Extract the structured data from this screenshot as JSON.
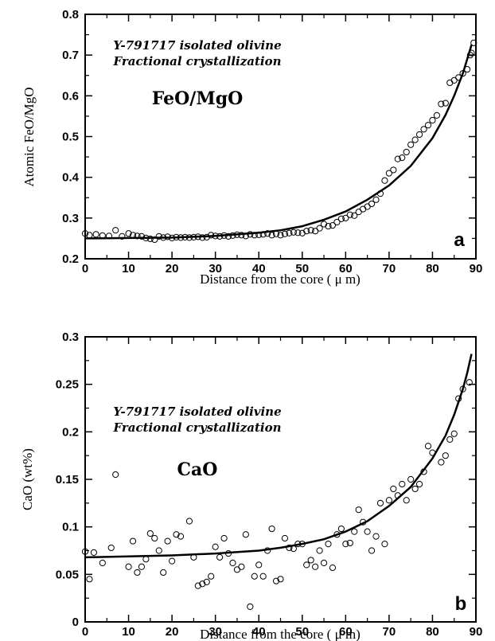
{
  "chart_data": [
    {
      "type": "scatter",
      "panel_label": "a",
      "annotation_line1": "Y-791717 isolated olivine",
      "annotation_line2": "Fractional crystallization",
      "annotation_title": "FeO/MgO",
      "xlabel": "Distance from the core ( μ m)",
      "ylabel": "Atomic FeO/MgO",
      "xlim": [
        0,
        90
      ],
      "ylim": [
        0.2,
        0.8
      ],
      "xticks": [
        "0",
        "10",
        "20",
        "30",
        "40",
        "50",
        "60",
        "70",
        "80",
        "90"
      ],
      "yticks": [
        "0.2",
        "0.3",
        "0.4",
        "0.5",
        "0.6",
        "0.7",
        "0.8"
      ],
      "grid": false,
      "series": [
        {
          "style": "open-circle",
          "points": [
            [
              0,
              0.262
            ],
            [
              1,
              0.258
            ],
            [
              2.5,
              0.26
            ],
            [
              4,
              0.257
            ],
            [
              5.5,
              0.256
            ],
            [
              7,
              0.27
            ],
            [
              8.5,
              0.255
            ],
            [
              10,
              0.262
            ],
            [
              11,
              0.258
            ],
            [
              12,
              0.256
            ],
            [
              13,
              0.255
            ],
            [
              14,
              0.251
            ],
            [
              15,
              0.249
            ],
            [
              16,
              0.247
            ],
            [
              17,
              0.255
            ],
            [
              18,
              0.252
            ],
            [
              19,
              0.254
            ],
            [
              20,
              0.251
            ],
            [
              21,
              0.253
            ],
            [
              22,
              0.252
            ],
            [
              23,
              0.253
            ],
            [
              24,
              0.252
            ],
            [
              25,
              0.253
            ],
            [
              26,
              0.254
            ],
            [
              27,
              0.252
            ],
            [
              28,
              0.253
            ],
            [
              29,
              0.258
            ],
            [
              30,
              0.256
            ],
            [
              31,
              0.255
            ],
            [
              32,
              0.257
            ],
            [
              33,
              0.255
            ],
            [
              34,
              0.257
            ],
            [
              35,
              0.259
            ],
            [
              36,
              0.258
            ],
            [
              37,
              0.256
            ],
            [
              38,
              0.26
            ],
            [
              39,
              0.258
            ],
            [
              40,
              0.259
            ],
            [
              41,
              0.26
            ],
            [
              42,
              0.262
            ],
            [
              43,
              0.258
            ],
            [
              44,
              0.261
            ],
            [
              45,
              0.258
            ],
            [
              46,
              0.261
            ],
            [
              47,
              0.263
            ],
            [
              48,
              0.265
            ],
            [
              49,
              0.264
            ],
            [
              50,
              0.263
            ],
            [
              51,
              0.268
            ],
            [
              52,
              0.27
            ],
            [
              53,
              0.268
            ],
            [
              54,
              0.275
            ],
            [
              55,
              0.285
            ],
            [
              56,
              0.28
            ],
            [
              57,
              0.282
            ],
            [
              58,
              0.29
            ],
            [
              59,
              0.298
            ],
            [
              60,
              0.3
            ],
            [
              61,
              0.308
            ],
            [
              62,
              0.306
            ],
            [
              63,
              0.315
            ],
            [
              64,
              0.322
            ],
            [
              65,
              0.328
            ],
            [
              66,
              0.335
            ],
            [
              67,
              0.345
            ],
            [
              68,
              0.36
            ],
            [
              69,
              0.392
            ],
            [
              70,
              0.41
            ],
            [
              71,
              0.418
            ],
            [
              72,
              0.445
            ],
            [
              73,
              0.448
            ],
            [
              74,
              0.462
            ],
            [
              75,
              0.48
            ],
            [
              76,
              0.492
            ],
            [
              77,
              0.505
            ],
            [
              78,
              0.518
            ],
            [
              79,
              0.528
            ],
            [
              80,
              0.54
            ],
            [
              81,
              0.552
            ],
            [
              82,
              0.58
            ],
            [
              83,
              0.582
            ],
            [
              84,
              0.632
            ],
            [
              85,
              0.638
            ],
            [
              86,
              0.645
            ],
            [
              87,
              0.655
            ],
            [
              88,
              0.665
            ],
            [
              88.7,
              0.7
            ],
            [
              89,
              0.705
            ],
            [
              89.5,
              0.73
            ]
          ]
        },
        {
          "style": "line",
          "points": [
            [
              0,
              0.25
            ],
            [
              10,
              0.251
            ],
            [
              20,
              0.252
            ],
            [
              30,
              0.256
            ],
            [
              40,
              0.264
            ],
            [
              45,
              0.27
            ],
            [
              50,
              0.28
            ],
            [
              55,
              0.296
            ],
            [
              60,
              0.316
            ],
            [
              65,
              0.345
            ],
            [
              70,
              0.38
            ],
            [
              75,
              0.428
            ],
            [
              80,
              0.496
            ],
            [
              83,
              0.553
            ],
            [
              85,
              0.6
            ],
            [
              87,
              0.655
            ],
            [
              88,
              0.69
            ],
            [
              89,
              0.725
            ]
          ]
        }
      ]
    },
    {
      "type": "scatter",
      "panel_label": "b",
      "annotation_line1": "Y-791717 isolated olivine",
      "annotation_line2": "Fractional crystallization",
      "annotation_title": "CaO",
      "xlabel": "Distance from the core ( μ m)",
      "ylabel": "CaO (wt%)",
      "xlim": [
        0,
        90
      ],
      "ylim": [
        0,
        0.3
      ],
      "xticks": [
        "0",
        "10",
        "20",
        "30",
        "40",
        "50",
        "60",
        "70",
        "80",
        "90"
      ],
      "yticks": [
        "0",
        "0.05",
        "0.1",
        "0.15",
        "0.2",
        "0.25",
        "0.3"
      ],
      "grid": false,
      "series": [
        {
          "style": "open-circle",
          "points": [
            [
              0,
              0.074
            ],
            [
              1,
              0.045
            ],
            [
              2,
              0.073
            ],
            [
              4,
              0.062
            ],
            [
              6,
              0.078
            ],
            [
              7,
              0.155
            ],
            [
              10,
              0.058
            ],
            [
              11,
              0.085
            ],
            [
              12,
              0.052
            ],
            [
              13,
              0.058
            ],
            [
              14,
              0.066
            ],
            [
              15,
              0.093
            ],
            [
              16,
              0.088
            ],
            [
              17,
              0.075
            ],
            [
              18,
              0.052
            ],
            [
              19,
              0.085
            ],
            [
              20,
              0.064
            ],
            [
              21,
              0.092
            ],
            [
              22,
              0.09
            ],
            [
              24,
              0.106
            ],
            [
              25,
              0.068
            ],
            [
              26,
              0.038
            ],
            [
              27,
              0.04
            ],
            [
              28,
              0.042
            ],
            [
              29,
              0.048
            ],
            [
              30,
              0.079
            ],
            [
              31,
              0.068
            ],
            [
              32,
              0.088
            ],
            [
              33,
              0.072
            ],
            [
              34,
              0.062
            ],
            [
              35,
              0.055
            ],
            [
              36,
              0.058
            ],
            [
              37,
              0.092
            ],
            [
              38,
              0.016
            ],
            [
              39,
              0.048
            ],
            [
              40,
              0.06
            ],
            [
              41,
              0.048
            ],
            [
              42,
              0.075
            ],
            [
              43,
              0.098
            ],
            [
              44,
              0.043
            ],
            [
              45,
              0.045
            ],
            [
              46,
              0.088
            ],
            [
              47,
              0.078
            ],
            [
              48,
              0.077
            ],
            [
              49,
              0.082
            ],
            [
              50,
              0.082
            ],
            [
              51,
              0.06
            ],
            [
              52,
              0.065
            ],
            [
              53,
              0.058
            ],
            [
              54,
              0.075
            ],
            [
              55,
              0.062
            ],
            [
              56,
              0.082
            ],
            [
              57,
              0.057
            ],
            [
              58,
              0.092
            ],
            [
              59,
              0.098
            ],
            [
              60,
              0.082
            ],
            [
              61,
              0.083
            ],
            [
              62,
              0.095
            ],
            [
              63,
              0.118
            ],
            [
              64,
              0.105
            ],
            [
              65,
              0.095
            ],
            [
              66,
              0.075
            ],
            [
              67,
              0.09
            ],
            [
              68,
              0.125
            ],
            [
              69,
              0.082
            ],
            [
              70,
              0.128
            ],
            [
              71,
              0.14
            ],
            [
              72,
              0.133
            ],
            [
              73,
              0.145
            ],
            [
              74,
              0.128
            ],
            [
              75,
              0.15
            ],
            [
              76,
              0.14
            ],
            [
              77,
              0.145
            ],
            [
              78,
              0.158
            ],
            [
              79,
              0.185
            ],
            [
              80,
              0.178
            ],
            [
              82,
              0.168
            ],
            [
              83,
              0.175
            ],
            [
              84,
              0.192
            ],
            [
              85,
              0.198
            ],
            [
              86,
              0.235
            ],
            [
              87,
              0.245
            ],
            [
              88.5,
              0.252
            ]
          ]
        },
        {
          "style": "line",
          "points": [
            [
              0,
              0.068
            ],
            [
              10,
              0.069
            ],
            [
              20,
              0.07
            ],
            [
              30,
              0.072
            ],
            [
              40,
              0.075
            ],
            [
              45,
              0.078
            ],
            [
              50,
              0.082
            ],
            [
              55,
              0.087
            ],
            [
              60,
              0.095
            ],
            [
              65,
              0.106
            ],
            [
              70,
              0.122
            ],
            [
              75,
              0.142
            ],
            [
              80,
              0.172
            ],
            [
              83,
              0.196
            ],
            [
              85,
              0.218
            ],
            [
              87,
              0.245
            ],
            [
              88,
              0.262
            ],
            [
              89,
              0.282
            ]
          ]
        }
      ]
    }
  ]
}
